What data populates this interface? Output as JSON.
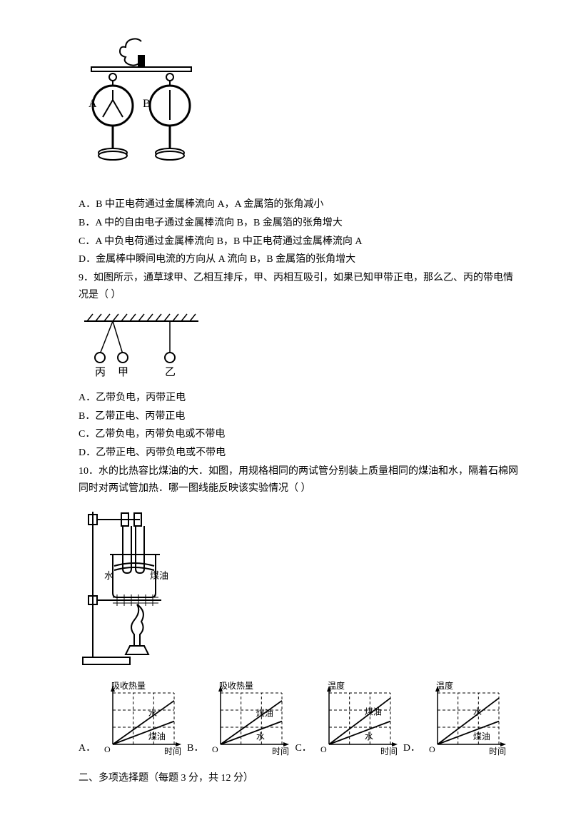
{
  "colors": {
    "text": "#000000",
    "line": "#000000",
    "bg": "#ffffff",
    "grid_dash": "#000000"
  },
  "q8": {
    "options": {
      "A": "A．B 中正电荷通过金属棒流向 A，A 金属箔的张角减小",
      "B": "B．A 中的自由电子通过金属棒流向 B，B 金属箔的张角增大",
      "C": "C．A 中负电荷通过金属棒流向 B，B 中正电荷通过金属棒流向 A",
      "D": "D．金属棒中瞬间电流的方向从 A 流向 B，B 金属箔的张角增大"
    },
    "figure": {
      "labelA": "A",
      "labelB": "B"
    }
  },
  "q9": {
    "stem": "9．如图所示，通草球甲、乙相互排斥，甲、丙相互吸引，如果已知甲带正电，那么乙、丙的带电情况是（      ）",
    "options": {
      "A": "A．乙带负电，丙带正电",
      "B": "B．乙带正电、丙带正电",
      "C": "C．乙带负电，丙带负电或不带电",
      "D": "D．乙带正电、丙带负电或不带电"
    },
    "figure": {
      "label_bing": "丙",
      "label_jia": "甲",
      "label_yi": "乙"
    }
  },
  "q10": {
    "stem1": "10．水的比热容比煤油的大．如图，用规格相同的两试管分别装上质量相同的煤油和水，隔着石棉网同时对两试管加热．哪一图线能反映该实验情况（      ）",
    "figure": {
      "label_water": "水",
      "label_oil": "煤油"
    },
    "charts": {
      "y_heat": "吸收热量",
      "y_temp": "温度",
      "x_time": "时间",
      "origin": "O",
      "l_water": "水",
      "l_oil": "煤油",
      "A": "A．",
      "B": "B．",
      "C": "C．",
      "D": "D．",
      "chartA": {
        "line1_label": "水",
        "line1_slope": 0.85,
        "line2_label": "煤油",
        "line2_slope": 0.45
      },
      "chartB": {
        "line1_label": "煤油",
        "line1_slope": 0.85,
        "line2_label": "水",
        "line2_slope": 0.45
      },
      "chartC": {
        "line1_label": "煤油",
        "line1_slope": 0.9,
        "line2_label": "水",
        "line2_slope": 0.45
      },
      "chartD": {
        "line1_label": "水",
        "line1_slope": 0.9,
        "line2_label": "煤油",
        "line2_slope": 0.45
      }
    }
  },
  "section2": {
    "title": "二、多项选择题（每题 3 分，共 12 分）"
  }
}
